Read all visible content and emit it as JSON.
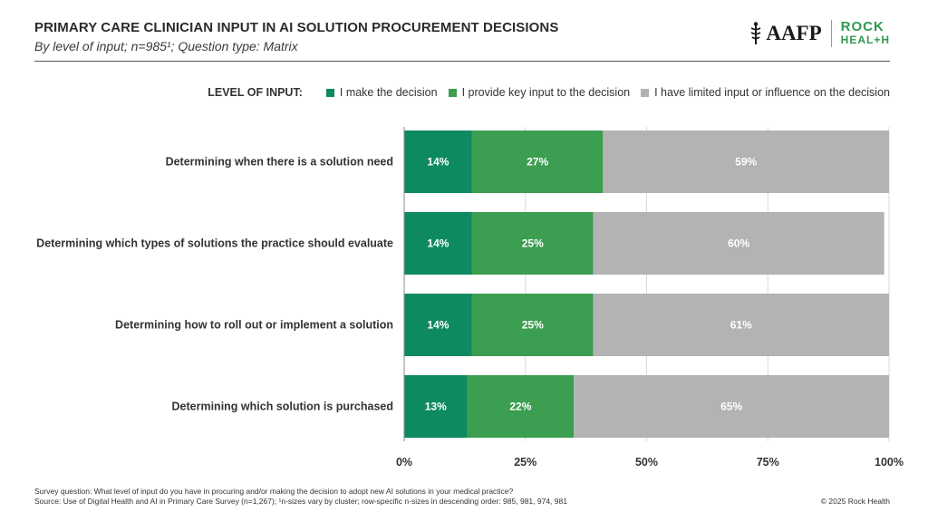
{
  "header": {
    "title": "PRIMARY CARE CLINICIAN INPUT IN AI SOLUTION PROCUREMENT DECISIONS",
    "subtitle": "By level of input; n=985¹; Question type: Matrix"
  },
  "logos": {
    "aafp": "AAFP",
    "rock_line1": "ROCK",
    "rock_line2": "HEAL+H"
  },
  "colors": {
    "make_decision": "#0e8a63",
    "key_input": "#3c9e50",
    "limited_input": "#b3b3b3",
    "grid": "#d9d9d9"
  },
  "chart_data": {
    "type": "bar",
    "orientation": "horizontal",
    "stacked": true,
    "legend_title": "LEVEL OF INPUT:",
    "legend_position": "top-right",
    "categories": [
      "Determining when there is a solution need",
      "Determining which types of solutions the practice should evaluate",
      "Determining how to roll out or implement a solution",
      "Determining which solution is purchased"
    ],
    "series": [
      {
        "name": "I make the decision",
        "values": [
          14,
          14,
          14,
          13
        ]
      },
      {
        "name": "I provide key input to the decision",
        "values": [
          27,
          25,
          25,
          22
        ]
      },
      {
        "name": "I have limited input or influence on the decision",
        "values": [
          59,
          60,
          61,
          65
        ]
      }
    ],
    "data_labels": [
      [
        "14%",
        "27%",
        "59%"
      ],
      [
        "14%",
        "25%",
        "60%"
      ],
      [
        "14%",
        "25%",
        "61%"
      ],
      [
        "13%",
        "22%",
        "65%"
      ]
    ],
    "xlim": [
      0,
      100
    ],
    "xticks": [
      0,
      25,
      50,
      75,
      100
    ],
    "xtick_labels": [
      "0%",
      "25%",
      "50%",
      "75%",
      "100%"
    ],
    "grid": true
  },
  "footer": {
    "question": "Survey question: What level of input do you have in procuring and/or making the decision to adopt new AI solutions in your medical practice?",
    "source": "Source: Use of Digital Health and AI in Primary Care Survey (n=1,267); ¹n-sizes vary by cluster; row-specific n-sizes in descending order: 985, 981, 974, 981",
    "copyright": "© 2025 Rock Health"
  }
}
